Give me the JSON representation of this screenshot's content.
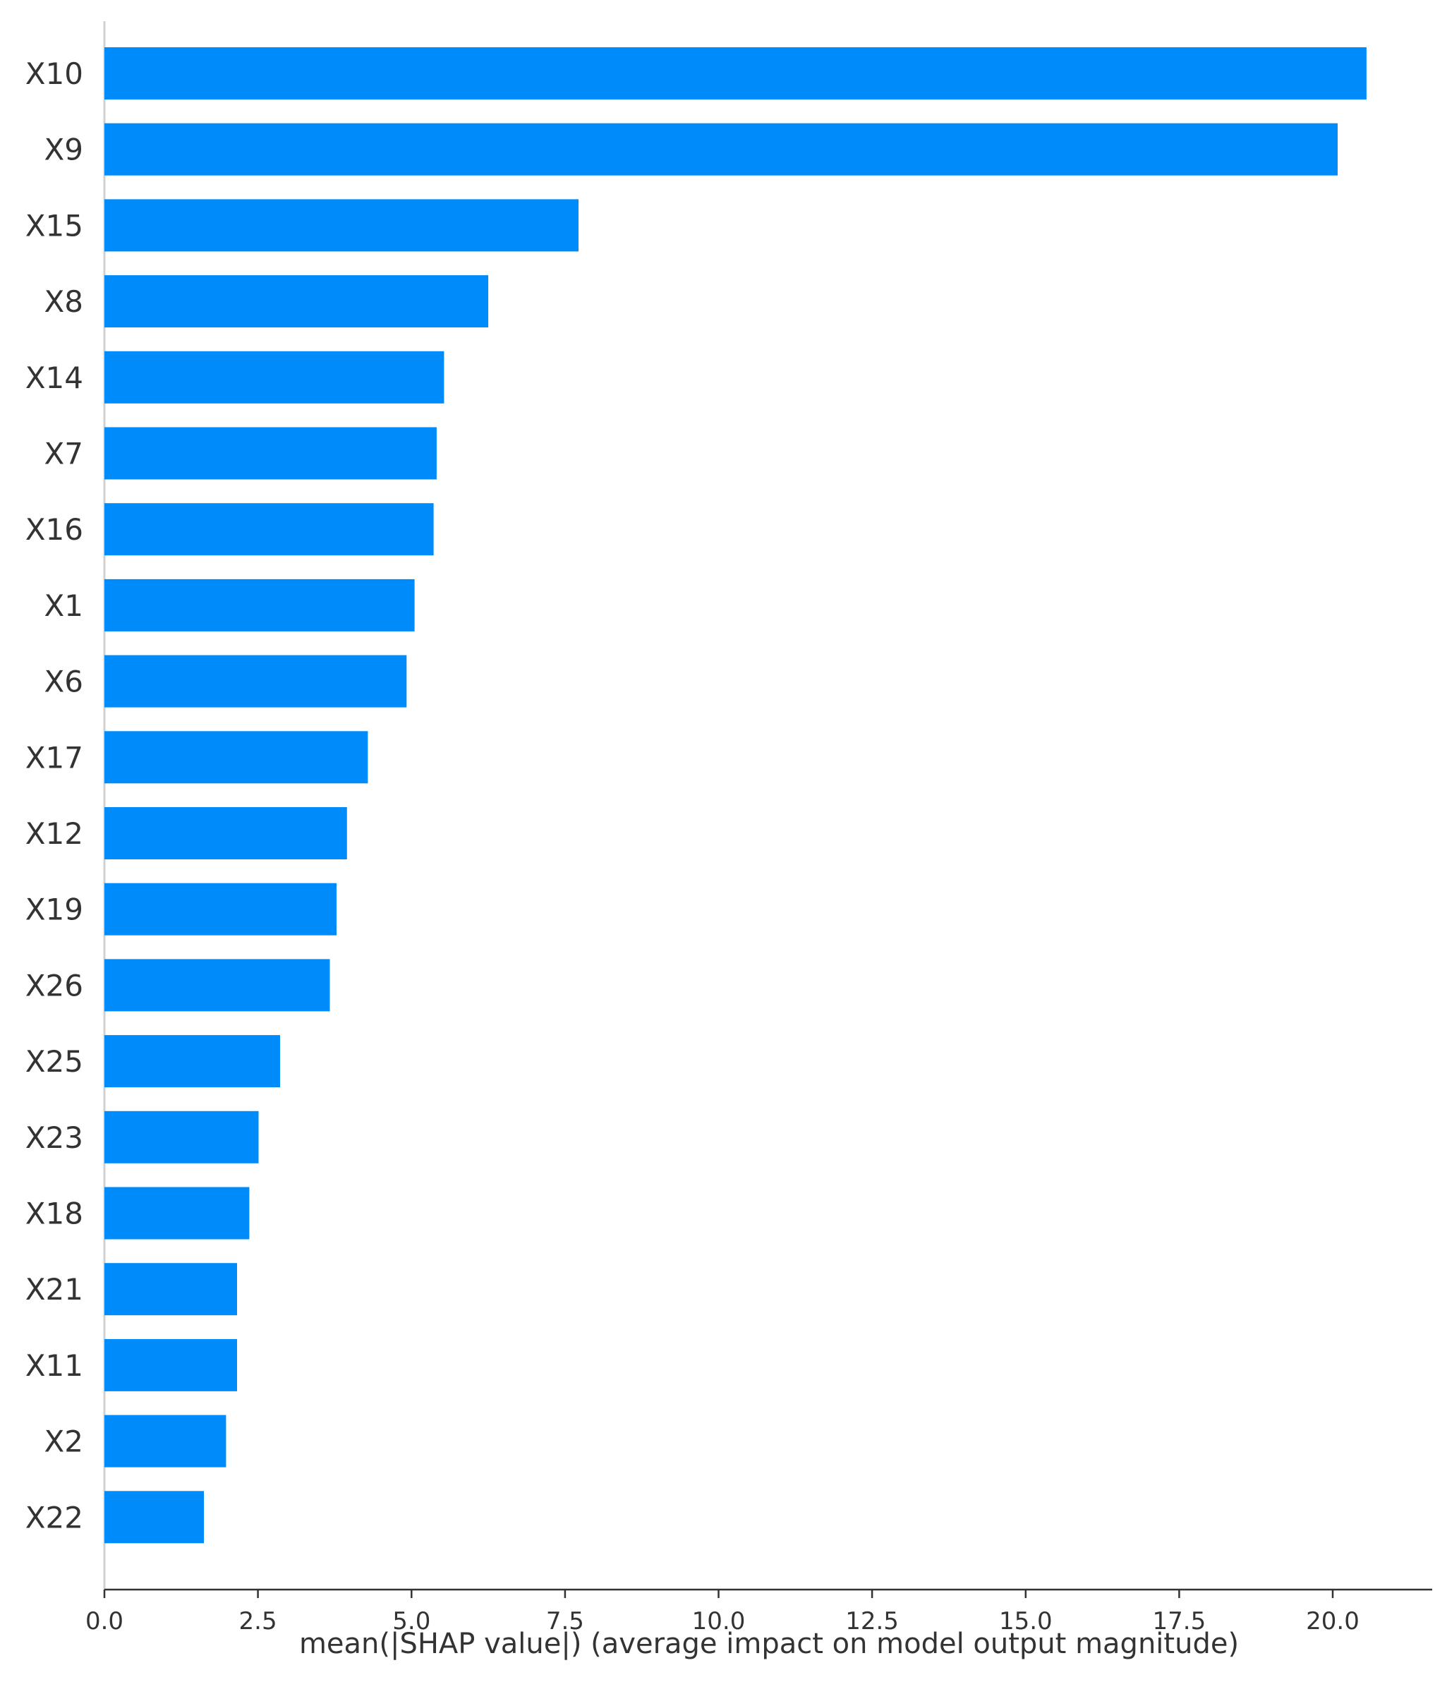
{
  "chart_data": {
    "type": "bar",
    "orientation": "horizontal",
    "categories": [
      "X10",
      "X9",
      "X15",
      "X8",
      "X14",
      "X7",
      "X16",
      "X1",
      "X6",
      "X17",
      "X12",
      "X19",
      "X26",
      "X25",
      "X23",
      "X18",
      "X21",
      "X11",
      "X2",
      "X22"
    ],
    "values": [
      20.55,
      20.08,
      7.72,
      6.25,
      5.53,
      5.41,
      5.36,
      5.05,
      4.92,
      4.29,
      3.95,
      3.78,
      3.67,
      2.86,
      2.51,
      2.36,
      2.16,
      2.16,
      1.98,
      1.62
    ],
    "xlabel": "mean(|SHAP value|) (average impact on model output magnitude)",
    "ylabel": "",
    "xlim": [
      0,
      21.6
    ],
    "xticks": [
      "0.0",
      "2.5",
      "5.0",
      "7.5",
      "10.0",
      "12.5",
      "15.0",
      "17.5",
      "20.0"
    ],
    "tick_values": [
      0,
      2.5,
      5,
      7.5,
      10,
      12.5,
      15,
      17.5,
      20
    ],
    "grid": false,
    "legend": "none",
    "bar_color": "#008bfb",
    "axis_color": "#333333",
    "text_color": "#333333"
  }
}
